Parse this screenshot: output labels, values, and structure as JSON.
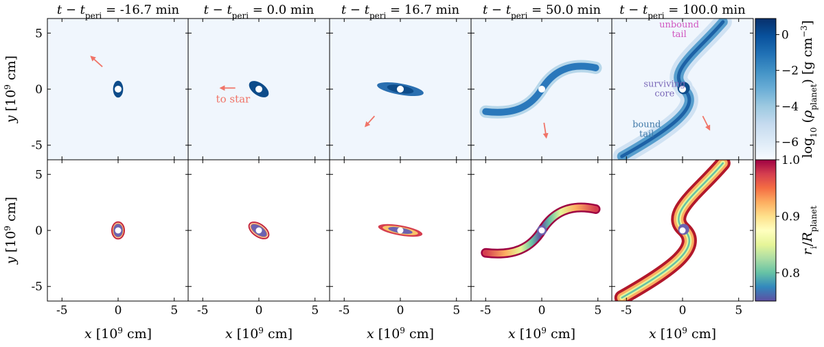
{
  "chart_data": {
    "type": "heatmap",
    "panel_titles": [
      "t − t_peri = -16.7 min",
      "t − t_peri = 0.0 min",
      "t − t_peri = 16.7 min",
      "t − t_peri = 50.0 min",
      "t − t_peri = 100.0 min"
    ],
    "times_min": [
      -16.7,
      0.0,
      16.7,
      50.0,
      100.0
    ],
    "xlabel": "x [10^9 cm]",
    "ylabel": "y [10^9 cm]",
    "xlim": [
      -6.3,
      6.3
    ],
    "ylim": [
      -6.3,
      6.3
    ],
    "xticks": [
      -5,
      0,
      5
    ],
    "yticks": [
      -5,
      0,
      5
    ],
    "tick_labels": [
      "-5",
      "0",
      "5"
    ],
    "rows": [
      {
        "quantity": "log10(rho_planet)",
        "colorbar_label": "log10 (ρ_planet)  [g cm^-3]",
        "colormap": "Blues",
        "clim": [
          -7,
          0.9
        ],
        "colorbar_ticks": [
          0,
          -2,
          -4,
          -6
        ],
        "colorbar_tick_labels": [
          "0",
          "−2",
          "−4",
          "−6"
        ]
      },
      {
        "quantity": "r_i/R_planet",
        "colorbar_label": "r_i / R_planet",
        "colormap": "Spectral_r",
        "clim": [
          0.75,
          1.0
        ],
        "colorbar_ticks": [
          1.0,
          0.9,
          0.8
        ],
        "colorbar_tick_labels": [
          "1.0",
          "0.9",
          "0.8"
        ]
      }
    ],
    "arrows": [
      {
        "panel": 0,
        "from": [
          -1.4,
          2.0
        ],
        "to": [
          -2.4,
          2.9
        ],
        "label": ""
      },
      {
        "panel": 1,
        "from": [
          -2.1,
          0.1
        ],
        "to": [
          -3.4,
          0.1
        ],
        "label": "to star"
      },
      {
        "panel": 2,
        "from": [
          -2.3,
          -2.4
        ],
        "to": [
          -3.1,
          -3.3
        ],
        "label": ""
      },
      {
        "panel": 3,
        "from": [
          0.2,
          -3.0
        ],
        "to": [
          0.4,
          -4.3
        ],
        "label": ""
      },
      {
        "panel": 4,
        "from": [
          1.8,
          -2.4
        ],
        "to": [
          2.4,
          -3.6
        ],
        "label": ""
      }
    ],
    "annotations": [
      {
        "panel": 4,
        "text_lines": [
          "unbound",
          "tail"
        ],
        "at": [
          -0.3,
          5.5
        ],
        "color": "#d055c0"
      },
      {
        "panel": 4,
        "text_lines": [
          "surviving",
          "core"
        ],
        "at": [
          -1.6,
          0.2
        ],
        "color": "#7a68b8"
      },
      {
        "panel": 4,
        "text_lines": [
          "bound",
          "tail"
        ],
        "at": [
          -3.2,
          -3.4
        ],
        "color": "#3f78a8"
      }
    ],
    "arrow_color": "#f07468",
    "background_color_top_row": "#f0f6fd"
  }
}
